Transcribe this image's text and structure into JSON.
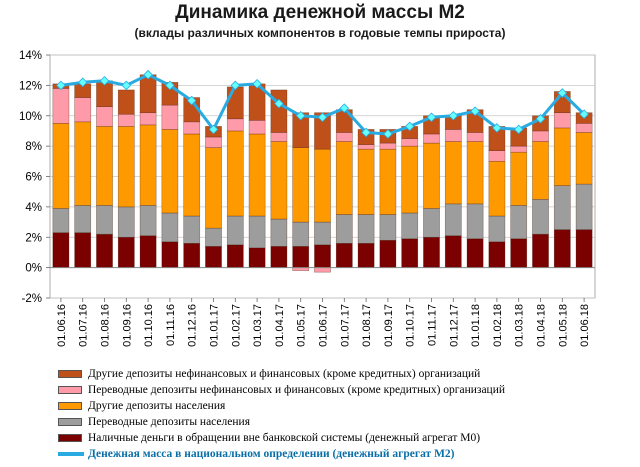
{
  "chart_data": {
    "type": "bar",
    "stacked": true,
    "title": "Динамика денежной массы М2",
    "subtitle": "(вклады различных компонентов в годовые темпы прироста)",
    "categories": [
      "01.06.16",
      "01.07.16",
      "01.08.16",
      "01.09.16",
      "01.10.16",
      "01.11.16",
      "01.12.16",
      "01.01.17",
      "01.02.17",
      "01.03.17",
      "01.04.17",
      "01.05.17",
      "01.06.17",
      "01.07.17",
      "01.08.17",
      "01.09.17",
      "01.10.17",
      "01.11.17",
      "01.12.17",
      "01.01.18",
      "01.02.18",
      "01.03.18",
      "01.04.18",
      "01.05.18",
      "01.06.18"
    ],
    "ylim": [
      -2,
      14
    ],
    "yticks": [
      -2,
      0,
      2,
      4,
      6,
      8,
      10,
      12,
      14
    ],
    "ytick_labels": [
      "-2%",
      "0%",
      "2%",
      "4%",
      "6%",
      "8%",
      "10%",
      "12%",
      "14%"
    ],
    "grid": true,
    "legend_position": "bottom",
    "series": [
      {
        "name": "Наличные деньги в обращении вне банковской системы (денежный агрегат М0)",
        "color": "#7b0000",
        "values": [
          2.3,
          2.3,
          2.2,
          2.0,
          2.1,
          1.7,
          1.6,
          1.4,
          1.5,
          1.3,
          1.4,
          1.4,
          1.5,
          1.6,
          1.6,
          1.8,
          1.9,
          2.0,
          2.1,
          1.9,
          1.7,
          1.9,
          2.2,
          2.5,
          2.5
        ]
      },
      {
        "name": "Переводные депозиты населения",
        "color": "#9d9d9d",
        "values": [
          1.6,
          1.8,
          1.9,
          2.0,
          2.0,
          1.9,
          1.8,
          1.2,
          1.9,
          2.1,
          1.8,
          1.6,
          1.5,
          1.9,
          1.9,
          1.7,
          1.7,
          1.9,
          2.1,
          2.3,
          1.7,
          2.2,
          2.3,
          2.9,
          3.0
        ]
      },
      {
        "name": "Другие депозиты населения",
        "color": "#ff9900",
        "values": [
          5.6,
          5.5,
          5.2,
          5.3,
          5.3,
          5.5,
          5.4,
          5.3,
          5.6,
          5.4,
          5.1,
          4.9,
          4.8,
          4.8,
          4.3,
          4.3,
          4.4,
          4.3,
          4.1,
          4.1,
          3.6,
          3.5,
          3.8,
          3.8,
          3.4
        ]
      },
      {
        "name": "Переводные депозиты нефинансовых и финансовых (кроме кредитных) организаций",
        "color": "#ff9aa8",
        "values": [
          2.3,
          1.6,
          1.3,
          0.8,
          0.8,
          1.6,
          0.8,
          0.7,
          0.8,
          0.9,
          0.6,
          -0.2,
          -0.3,
          0.6,
          0.3,
          0.4,
          0.5,
          0.6,
          0.8,
          0.6,
          0.7,
          0.4,
          0.7,
          1.0,
          0.6
        ]
      },
      {
        "name": "Другие депозиты нефинансовых и финансовых (кроме кредитных) организаций",
        "color": "#c0501a",
        "values": [
          0.3,
          0.9,
          1.7,
          1.6,
          2.5,
          1.5,
          1.6,
          0.7,
          2.1,
          2.4,
          2.8,
          2.3,
          2.4,
          1.5,
          1.0,
          0.9,
          0.8,
          1.2,
          0.9,
          1.5,
          1.6,
          1.2,
          1.0,
          1.4,
          0.7
        ]
      },
      {
        "name": "Денежная масса в национальном определении (денежный агрегат М2)",
        "type": "line",
        "color": "#29abe2",
        "values": [
          12.0,
          12.2,
          12.3,
          12.0,
          12.7,
          12.0,
          11.0,
          9.1,
          12.0,
          12.1,
          10.8,
          10.0,
          9.9,
          10.5,
          8.9,
          8.8,
          9.3,
          9.9,
          10.0,
          10.3,
          9.2,
          9.1,
          9.8,
          11.5,
          10.1
        ]
      }
    ]
  },
  "legend": {
    "entries": [
      {
        "label": "Другие депозиты нефинансовых и финансовых (кроме кредитных)  организаций",
        "color": "#c0501a",
        "kind": "bar"
      },
      {
        "label": "Переводные депозиты нефинансовых и финансовых (кроме кредитных)  организаций",
        "color": "#ff9aa8",
        "kind": "bar"
      },
      {
        "label": "Другие депозиты населения",
        "color": "#ff9900",
        "kind": "bar"
      },
      {
        "label": "Переводные депозиты населения",
        "color": "#9d9d9d",
        "kind": "bar"
      },
      {
        "label": "Наличные деньги в обращении вне банковской системы (денежный агрегат М0)",
        "color": "#7b0000",
        "kind": "bar"
      },
      {
        "label": "Денежная масса в национальном  определении  (денежный агрегат  М2)",
        "color": "#29abe2",
        "kind": "line"
      }
    ]
  }
}
